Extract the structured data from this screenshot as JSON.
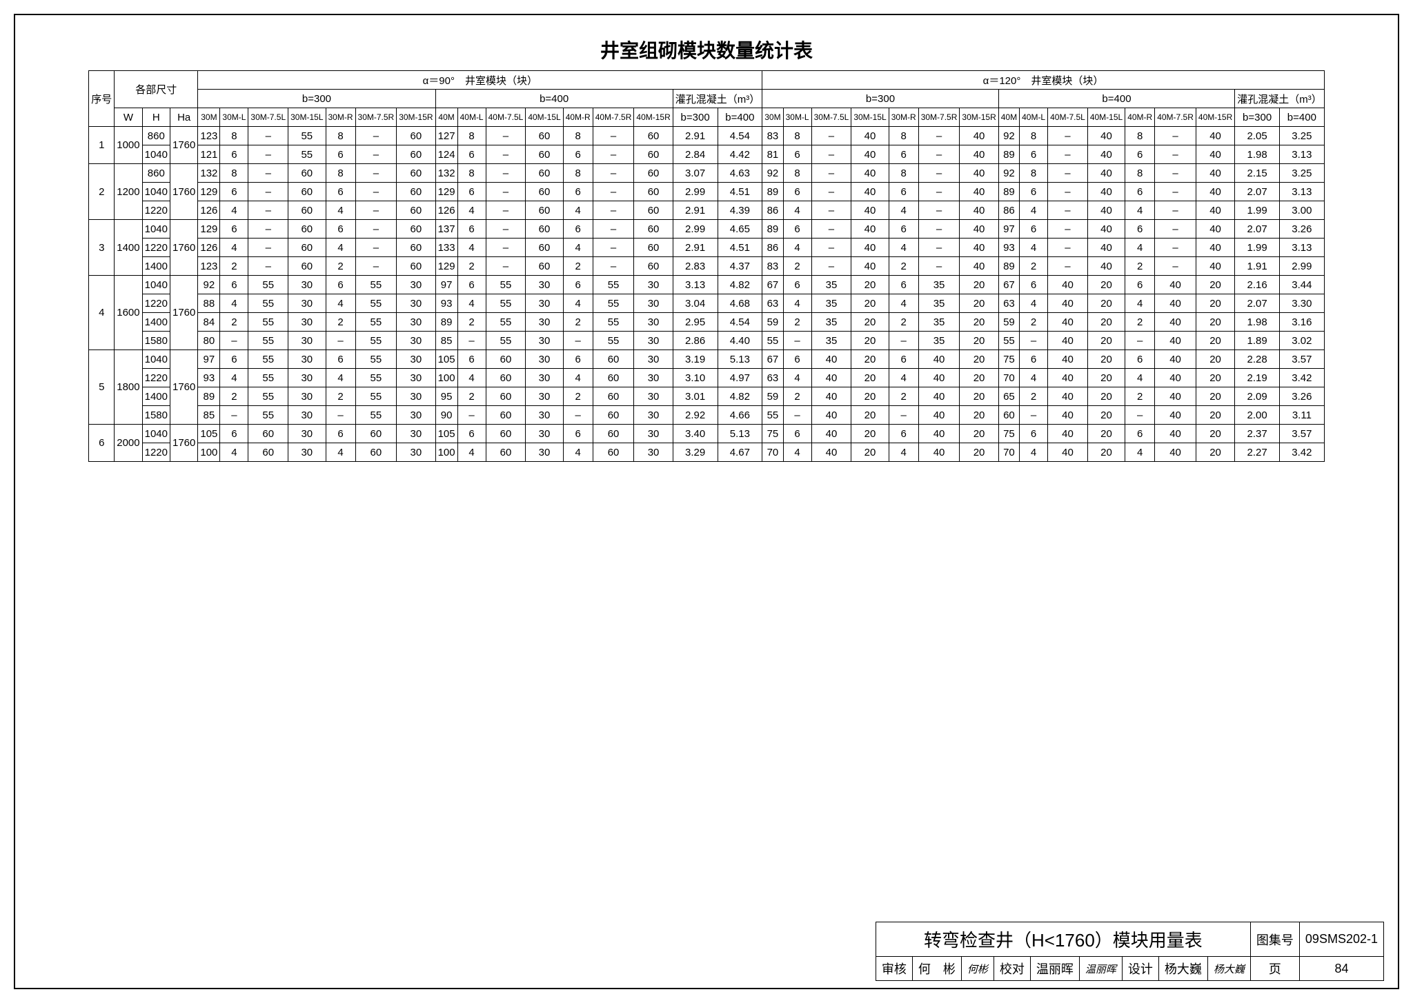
{
  "title": "井室组砌模块数量统计表",
  "alpha90_label": "α＝90°　井室模块（块）",
  "alpha120_label": "α＝120°　井室模块（块）",
  "dims_label": "各部尺寸",
  "seq_label": "序号",
  "b300": "b=300",
  "b400": "b=400",
  "concrete_label": "灌孔混凝土（m³）",
  "dim_cols": [
    "W",
    "H",
    "Ha"
  ],
  "sub_cols": [
    "30M",
    "30M-L",
    "30M-7.5L",
    "30M-15L",
    "30M-R",
    "30M-7.5R",
    "30M-15R",
    "40M",
    "40M-L",
    "40M-7.5L",
    "40M-15L",
    "40M-R",
    "40M-7.5R",
    "40M-15R"
  ],
  "groups": [
    {
      "seq": "1",
      "W": "1000",
      "Ha": "1760",
      "rows": [
        {
          "H": "860",
          "a90": [
            "123",
            "8",
            "–",
            "55",
            "8",
            "–",
            "60",
            "127",
            "8",
            "–",
            "60",
            "8",
            "–",
            "60"
          ],
          "c90": [
            "2.91",
            "4.54"
          ],
          "a120": [
            "83",
            "8",
            "–",
            "40",
            "8",
            "–",
            "40",
            "92",
            "8",
            "–",
            "40",
            "8",
            "–",
            "40"
          ],
          "c120": [
            "2.05",
            "3.25"
          ]
        },
        {
          "H": "1040",
          "a90": [
            "121",
            "6",
            "–",
            "55",
            "6",
            "–",
            "60",
            "124",
            "6",
            "–",
            "60",
            "6",
            "–",
            "60"
          ],
          "c90": [
            "2.84",
            "4.42"
          ],
          "a120": [
            "81",
            "6",
            "–",
            "40",
            "6",
            "–",
            "40",
            "89",
            "6",
            "–",
            "40",
            "6",
            "–",
            "40"
          ],
          "c120": [
            "1.98",
            "3.13"
          ]
        }
      ]
    },
    {
      "seq": "2",
      "W": "1200",
      "Ha": "1760",
      "rows": [
        {
          "H": "860",
          "a90": [
            "132",
            "8",
            "–",
            "60",
            "8",
            "–",
            "60",
            "132",
            "8",
            "–",
            "60",
            "8",
            "–",
            "60"
          ],
          "c90": [
            "3.07",
            "4.63"
          ],
          "a120": [
            "92",
            "8",
            "–",
            "40",
            "8",
            "–",
            "40",
            "92",
            "8",
            "–",
            "40",
            "8",
            "–",
            "40"
          ],
          "c120": [
            "2.15",
            "3.25"
          ]
        },
        {
          "H": "1040",
          "a90": [
            "129",
            "6",
            "–",
            "60",
            "6",
            "–",
            "60",
            "129",
            "6",
            "–",
            "60",
            "6",
            "–",
            "60"
          ],
          "c90": [
            "2.99",
            "4.51"
          ],
          "a120": [
            "89",
            "6",
            "–",
            "40",
            "6",
            "–",
            "40",
            "89",
            "6",
            "–",
            "40",
            "6",
            "–",
            "40"
          ],
          "c120": [
            "2.07",
            "3.13"
          ]
        },
        {
          "H": "1220",
          "a90": [
            "126",
            "4",
            "–",
            "60",
            "4",
            "–",
            "60",
            "126",
            "4",
            "–",
            "60",
            "4",
            "–",
            "60"
          ],
          "c90": [
            "2.91",
            "4.39"
          ],
          "a120": [
            "86",
            "4",
            "–",
            "40",
            "4",
            "–",
            "40",
            "86",
            "4",
            "–",
            "40",
            "4",
            "–",
            "40"
          ],
          "c120": [
            "1.99",
            "3.00"
          ]
        }
      ]
    },
    {
      "seq": "3",
      "W": "1400",
      "Ha": "1760",
      "rows": [
        {
          "H": "1040",
          "a90": [
            "129",
            "6",
            "–",
            "60",
            "6",
            "–",
            "60",
            "137",
            "6",
            "–",
            "60",
            "6",
            "–",
            "60"
          ],
          "c90": [
            "2.99",
            "4.65"
          ],
          "a120": [
            "89",
            "6",
            "–",
            "40",
            "6",
            "–",
            "40",
            "97",
            "6",
            "–",
            "40",
            "6",
            "–",
            "40"
          ],
          "c120": [
            "2.07",
            "3.26"
          ]
        },
        {
          "H": "1220",
          "a90": [
            "126",
            "4",
            "–",
            "60",
            "4",
            "–",
            "60",
            "133",
            "4",
            "–",
            "60",
            "4",
            "–",
            "60"
          ],
          "c90": [
            "2.91",
            "4.51"
          ],
          "a120": [
            "86",
            "4",
            "–",
            "40",
            "4",
            "–",
            "40",
            "93",
            "4",
            "–",
            "40",
            "4",
            "–",
            "40"
          ],
          "c120": [
            "1.99",
            "3.13"
          ]
        },
        {
          "H": "1400",
          "a90": [
            "123",
            "2",
            "–",
            "60",
            "2",
            "–",
            "60",
            "129",
            "2",
            "–",
            "60",
            "2",
            "–",
            "60"
          ],
          "c90": [
            "2.83",
            "4.37"
          ],
          "a120": [
            "83",
            "2",
            "–",
            "40",
            "2",
            "–",
            "40",
            "89",
            "2",
            "–",
            "40",
            "2",
            "–",
            "40"
          ],
          "c120": [
            "1.91",
            "2.99"
          ]
        }
      ]
    },
    {
      "seq": "4",
      "W": "1600",
      "Ha": "1760",
      "rows": [
        {
          "H": "1040",
          "a90": [
            "92",
            "6",
            "55",
            "30",
            "6",
            "55",
            "30",
            "97",
            "6",
            "55",
            "30",
            "6",
            "55",
            "30"
          ],
          "c90": [
            "3.13",
            "4.82"
          ],
          "a120": [
            "67",
            "6",
            "35",
            "20",
            "6",
            "35",
            "20",
            "67",
            "6",
            "40",
            "20",
            "6",
            "40",
            "20"
          ],
          "c120": [
            "2.16",
            "3.44"
          ]
        },
        {
          "H": "1220",
          "a90": [
            "88",
            "4",
            "55",
            "30",
            "4",
            "55",
            "30",
            "93",
            "4",
            "55",
            "30",
            "4",
            "55",
            "30"
          ],
          "c90": [
            "3.04",
            "4.68"
          ],
          "a120": [
            "63",
            "4",
            "35",
            "20",
            "4",
            "35",
            "20",
            "63",
            "4",
            "40",
            "20",
            "4",
            "40",
            "20"
          ],
          "c120": [
            "2.07",
            "3.30"
          ]
        },
        {
          "H": "1400",
          "a90": [
            "84",
            "2",
            "55",
            "30",
            "2",
            "55",
            "30",
            "89",
            "2",
            "55",
            "30",
            "2",
            "55",
            "30"
          ],
          "c90": [
            "2.95",
            "4.54"
          ],
          "a120": [
            "59",
            "2",
            "35",
            "20",
            "2",
            "35",
            "20",
            "59",
            "2",
            "40",
            "20",
            "2",
            "40",
            "20"
          ],
          "c120": [
            "1.98",
            "3.16"
          ]
        },
        {
          "H": "1580",
          "a90": [
            "80",
            "–",
            "55",
            "30",
            "–",
            "55",
            "30",
            "85",
            "–",
            "55",
            "30",
            "–",
            "55",
            "30"
          ],
          "c90": [
            "2.86",
            "4.40"
          ],
          "a120": [
            "55",
            "–",
            "35",
            "20",
            "–",
            "35",
            "20",
            "55",
            "–",
            "40",
            "20",
            "–",
            "40",
            "20"
          ],
          "c120": [
            "1.89",
            "3.02"
          ]
        }
      ]
    },
    {
      "seq": "5",
      "W": "1800",
      "Ha": "1760",
      "rows": [
        {
          "H": "1040",
          "a90": [
            "97",
            "6",
            "55",
            "30",
            "6",
            "55",
            "30",
            "105",
            "6",
            "60",
            "30",
            "6",
            "60",
            "30"
          ],
          "c90": [
            "3.19",
            "5.13"
          ],
          "a120": [
            "67",
            "6",
            "40",
            "20",
            "6",
            "40",
            "20",
            "75",
            "6",
            "40",
            "20",
            "6",
            "40",
            "20"
          ],
          "c120": [
            "2.28",
            "3.57"
          ]
        },
        {
          "H": "1220",
          "a90": [
            "93",
            "4",
            "55",
            "30",
            "4",
            "55",
            "30",
            "100",
            "4",
            "60",
            "30",
            "4",
            "60",
            "30"
          ],
          "c90": [
            "3.10",
            "4.97"
          ],
          "a120": [
            "63",
            "4",
            "40",
            "20",
            "4",
            "40",
            "20",
            "70",
            "4",
            "40",
            "20",
            "4",
            "40",
            "20"
          ],
          "c120": [
            "2.19",
            "3.42"
          ]
        },
        {
          "H": "1400",
          "a90": [
            "89",
            "2",
            "55",
            "30",
            "2",
            "55",
            "30",
            "95",
            "2",
            "60",
            "30",
            "2",
            "60",
            "30"
          ],
          "c90": [
            "3.01",
            "4.82"
          ],
          "a120": [
            "59",
            "2",
            "40",
            "20",
            "2",
            "40",
            "20",
            "65",
            "2",
            "40",
            "20",
            "2",
            "40",
            "20"
          ],
          "c120": [
            "2.09",
            "3.26"
          ]
        },
        {
          "H": "1580",
          "a90": [
            "85",
            "–",
            "55",
            "30",
            "–",
            "55",
            "30",
            "90",
            "–",
            "60",
            "30",
            "–",
            "60",
            "30"
          ],
          "c90": [
            "2.92",
            "4.66"
          ],
          "a120": [
            "55",
            "–",
            "40",
            "20",
            "–",
            "40",
            "20",
            "60",
            "–",
            "40",
            "20",
            "–",
            "40",
            "20"
          ],
          "c120": [
            "2.00",
            "3.11"
          ]
        }
      ]
    },
    {
      "seq": "6",
      "W": "2000",
      "Ha": "1760",
      "rows": [
        {
          "H": "1040",
          "a90": [
            "105",
            "6",
            "60",
            "30",
            "6",
            "60",
            "30",
            "105",
            "6",
            "60",
            "30",
            "6",
            "60",
            "30"
          ],
          "c90": [
            "3.40",
            "5.13"
          ],
          "a120": [
            "75",
            "6",
            "40",
            "20",
            "6",
            "40",
            "20",
            "75",
            "6",
            "40",
            "20",
            "6",
            "40",
            "20"
          ],
          "c120": [
            "2.37",
            "3.57"
          ]
        },
        {
          "H": "1220",
          "a90": [
            "100",
            "4",
            "60",
            "30",
            "4",
            "60",
            "30",
            "100",
            "4",
            "60",
            "30",
            "4",
            "60",
            "30"
          ],
          "c90": [
            "3.29",
            "4.67"
          ],
          "a120": [
            "70",
            "4",
            "40",
            "20",
            "4",
            "40",
            "20",
            "70",
            "4",
            "40",
            "20",
            "4",
            "40",
            "20"
          ],
          "c120": [
            "2.27",
            "3.42"
          ]
        }
      ]
    }
  ],
  "footer": {
    "title": "转弯检查井（H<1760）模块用量表",
    "drawing_no_label": "图集号",
    "drawing_no": "09SMS202-1",
    "review_label": "审核",
    "reviewer": "何　彬",
    "reviewer_sig": "何彬",
    "check_label": "校对",
    "checker": "温丽晖",
    "checker_sig": "温丽晖",
    "design_label": "设计",
    "designer": "杨大巍",
    "designer_sig": "杨大巍",
    "page_label": "页",
    "page_no": "84"
  }
}
